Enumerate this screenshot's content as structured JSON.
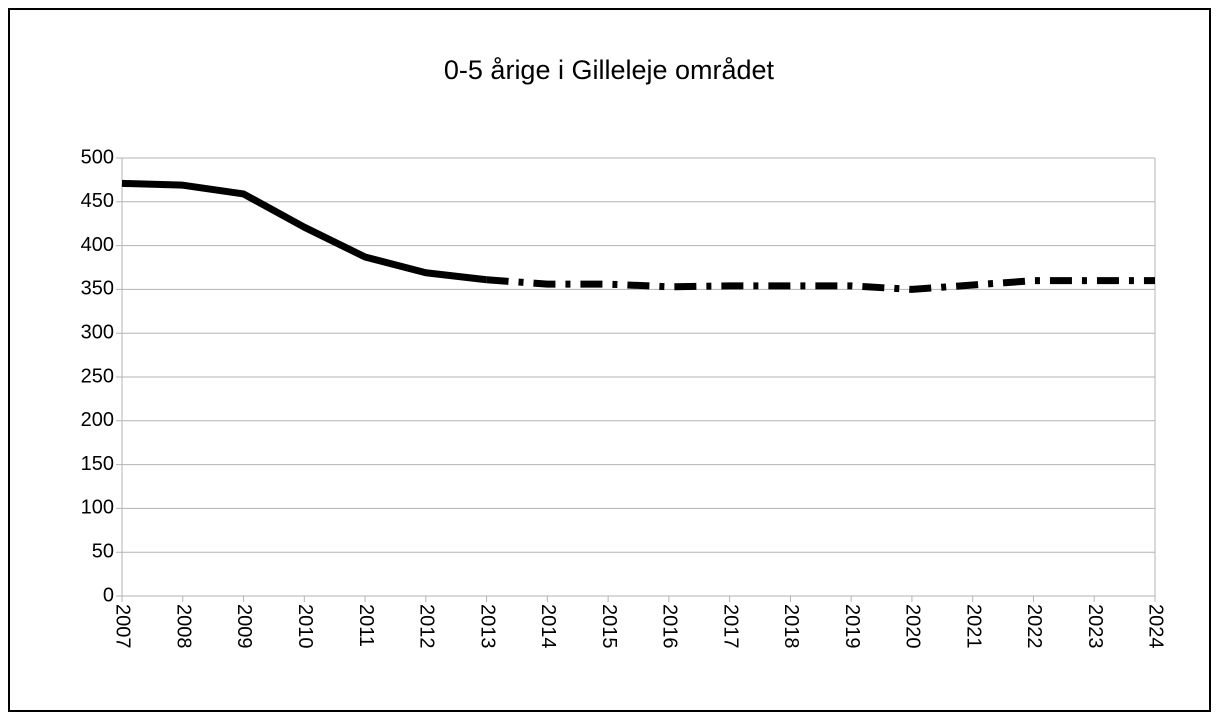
{
  "chart_data": {
    "type": "line",
    "title": "0-5 årige i Gilleleje området",
    "categories": [
      "2007",
      "2008",
      "2009",
      "2010",
      "2011",
      "2012",
      "2013",
      "2014",
      "2015",
      "2016",
      "2017",
      "2018",
      "2019",
      "2020",
      "2021",
      "2022",
      "2023",
      "2024"
    ],
    "series": [
      {
        "color": "#000000",
        "dash": "solid",
        "values": [
          471,
          469,
          459,
          421,
          387,
          369,
          361,
          null,
          null,
          null,
          null,
          null,
          null,
          null,
          null,
          null,
          null,
          null
        ]
      },
      {
        "color": "#000000",
        "dash": "dashdot",
        "values": [
          null,
          null,
          null,
          null,
          null,
          null,
          361,
          356,
          356,
          353,
          354,
          354,
          354,
          350,
          355,
          360,
          360,
          360
        ]
      }
    ],
    "ylim": [
      0,
      500
    ],
    "yticks": [
      0,
      50,
      100,
      150,
      200,
      250,
      300,
      350,
      400,
      450,
      500
    ],
    "grid": true
  }
}
